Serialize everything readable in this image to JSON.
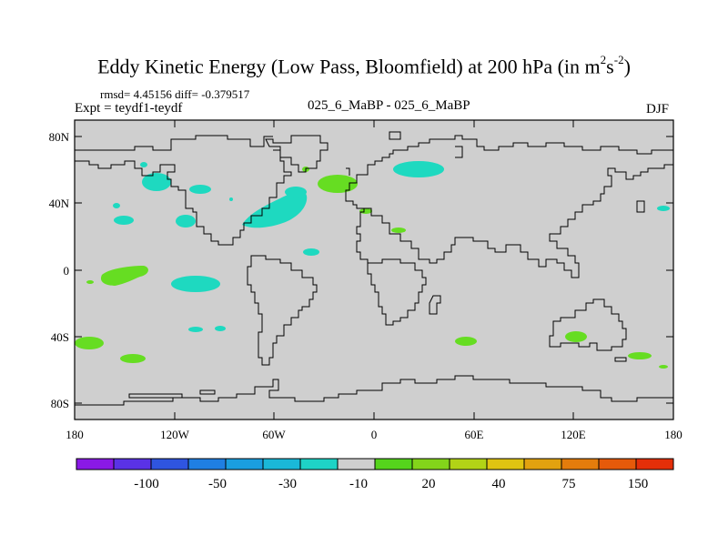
{
  "title": {
    "main": "Eddy Kinetic Energy (Low Pass, Bloomfield) at 200 hPa (in m",
    "sup1": "2",
    "mid": "s",
    "sup2": "-2",
    "end": ")"
  },
  "stats": "rmsd= 4.45156 diff= -0.379517",
  "experiment": "Expt = teydf1-teydf",
  "center_label": "025_6_MaBP - 025_6_MaBP",
  "season": "DJF",
  "colors": {
    "land_background": "#cfcfcf",
    "coast": "#000000",
    "cyan_patch": "#1ed9c0",
    "green_patch": "#66dd22"
  },
  "map": {
    "lat_labels": [
      "80N",
      "40N",
      "0",
      "40S",
      "80S"
    ],
    "lon_labels": [
      "180",
      "120W",
      "60W",
      "0",
      "60E",
      "120E",
      "180"
    ]
  },
  "colorbar": {
    "colors": [
      "#8a19e6",
      "#5a32e6",
      "#2f55e0",
      "#1f7fe3",
      "#1a9ee0",
      "#1ab8d8",
      "#1ed3c6",
      "#cfcfcf",
      "#55d41c",
      "#83d41a",
      "#b2d316",
      "#e0c411",
      "#e2a20f",
      "#e47c0c",
      "#e65a0a",
      "#e42f09"
    ],
    "labels": [
      "-100",
      "-50",
      "-30",
      "-10",
      "20",
      "40",
      "75",
      "150"
    ]
  }
}
